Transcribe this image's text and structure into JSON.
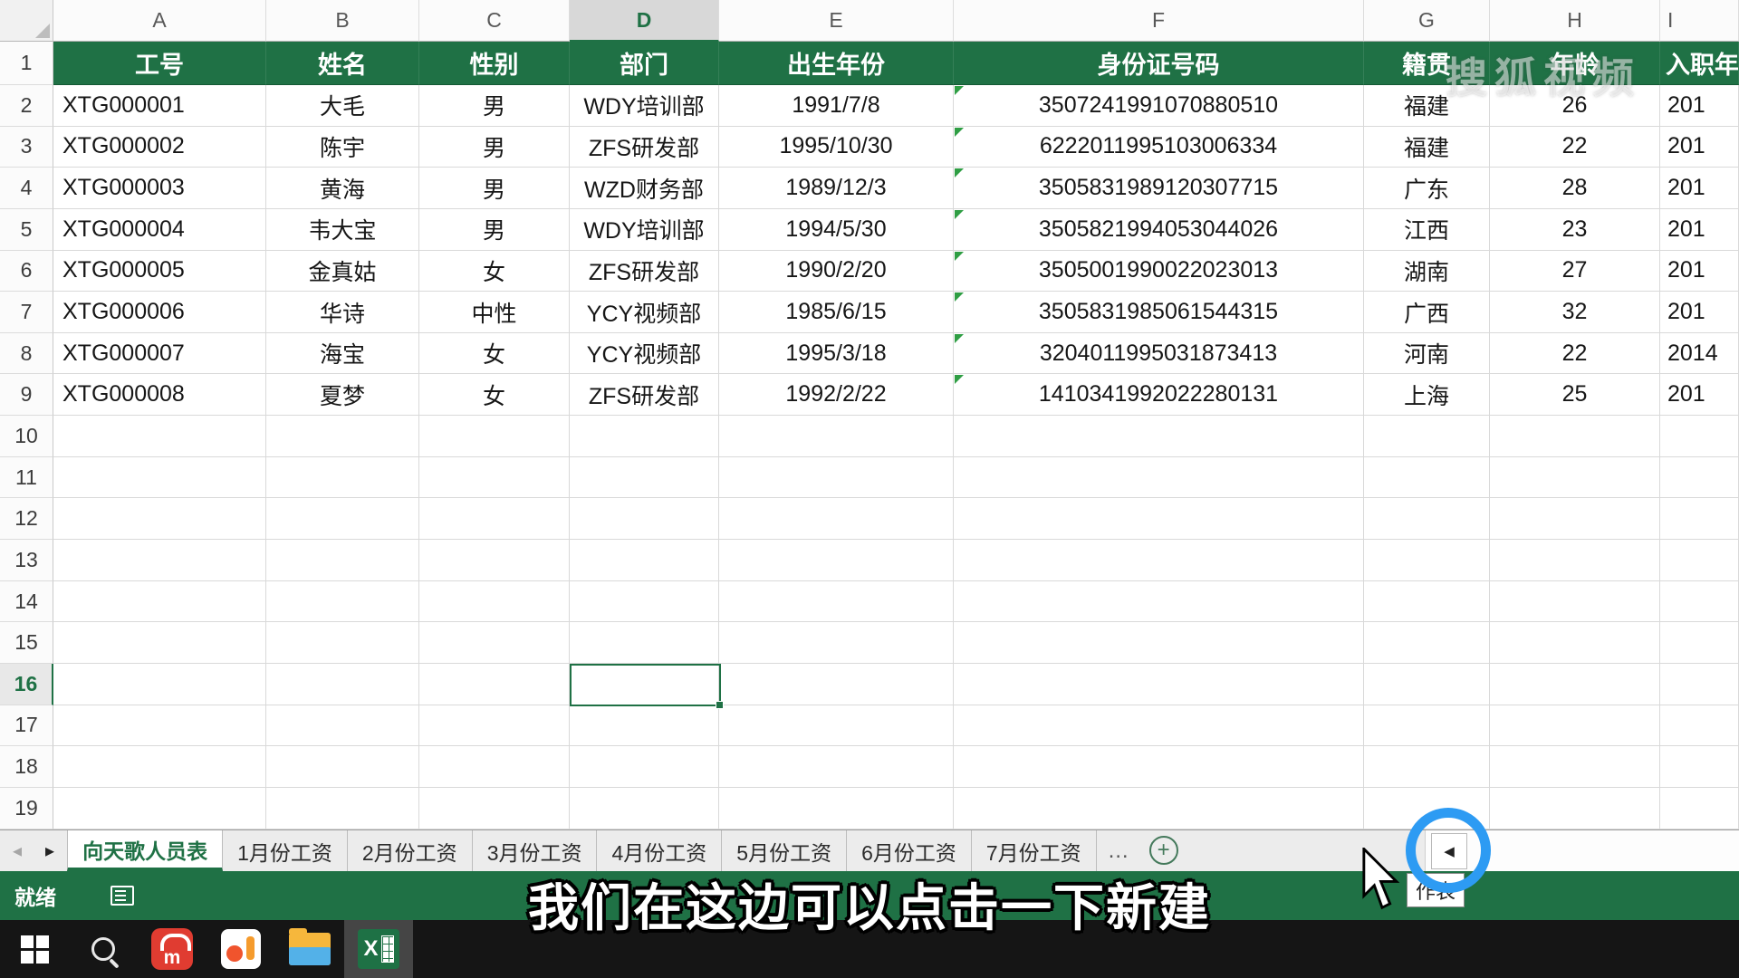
{
  "grid": {
    "columns": [
      "A",
      "B",
      "C",
      "D",
      "E",
      "F",
      "G",
      "H",
      "I"
    ],
    "selected_column": "D",
    "selected_cell": "D16",
    "header_row_number": "1",
    "header_cells": [
      "工号",
      "姓名",
      "性别",
      "部门",
      "出生年份",
      "身份证号码",
      "籍贯",
      "年龄",
      "入职年份"
    ],
    "data_rows": [
      {
        "n": "2",
        "cells": [
          "XTG000001",
          "大毛",
          "男",
          "WDY培训部",
          "1991/7/8",
          "3507241991070880510",
          "福建",
          "26",
          "201"
        ]
      },
      {
        "n": "3",
        "cells": [
          "XTG000002",
          "陈宇",
          "男",
          "ZFS研发部",
          "1995/10/30",
          "6222011995103006334",
          "福建",
          "22",
          "201"
        ]
      },
      {
        "n": "4",
        "cells": [
          "XTG000003",
          "黄海",
          "男",
          "WZD财务部",
          "1989/12/3",
          "3505831989120307715",
          "广东",
          "28",
          "201"
        ]
      },
      {
        "n": "5",
        "cells": [
          "XTG000004",
          "韦大宝",
          "男",
          "WDY培训部",
          "1994/5/30",
          "3505821994053044026",
          "江西",
          "23",
          "201"
        ]
      },
      {
        "n": "6",
        "cells": [
          "XTG000005",
          "金真姑",
          "女",
          "ZFS研发部",
          "1990/2/20",
          "3505001990022023013",
          "湖南",
          "27",
          "201"
        ]
      },
      {
        "n": "7",
        "cells": [
          "XTG000006",
          "华诗",
          "中性",
          "YCY视频部",
          "1985/6/15",
          "3505831985061544315",
          "广西",
          "32",
          "201"
        ]
      },
      {
        "n": "8",
        "cells": [
          "XTG000007",
          "海宝",
          "女",
          "YCY视频部",
          "1995/3/18",
          "3204011995031873413",
          "河南",
          "22",
          "2014"
        ]
      },
      {
        "n": "9",
        "cells": [
          "XTG000008",
          "夏梦",
          "女",
          "ZFS研发部",
          "1992/2/22",
          "1410341992022280131",
          "上海",
          "25",
          "201"
        ]
      }
    ],
    "empty_rows": [
      "10",
      "11",
      "12",
      "13",
      "14",
      "15",
      "16",
      "17",
      "18",
      "19"
    ]
  },
  "tabs": {
    "items": [
      "向天歌人员表",
      "1月份工资",
      "2月份工资",
      "3月份工资",
      "4月份工资",
      "5月份工资",
      "6月份工资",
      "7月份工资"
    ],
    "active": "向天歌人员表"
  },
  "icons": {
    "tab_prev": "◂",
    "tab_next": "▸",
    "overflow": "…",
    "add": "+",
    "scroll_left": "◀",
    "music_glyph": "m",
    "excel_glyph": "X"
  },
  "status": {
    "ready": "就绪"
  },
  "overlay": {
    "subtitle": "我们在这边可以点击一下新建",
    "tooltip_fragment": "作表",
    "watermark": "搜狐视频"
  },
  "colors": {
    "excel_green": "#217346",
    "header_fill": "#1F7145",
    "click_ring_blue": "#2D9BF3",
    "error_triangle_green": "#2F9E44",
    "taskbar": "#151515"
  }
}
